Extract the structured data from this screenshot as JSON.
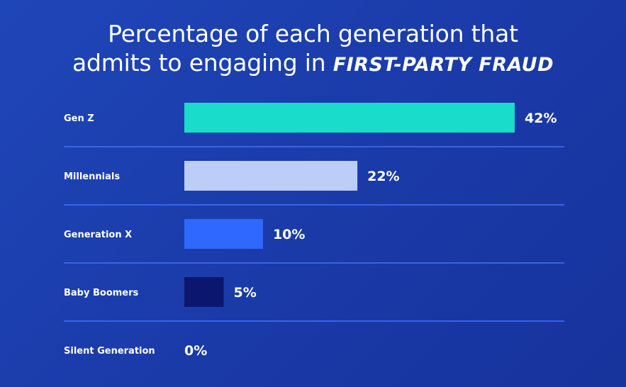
{
  "title": {
    "line1": "Percentage of each generation that",
    "line2_plain": "admits to engaging in",
    "line2_accent": "FIRST-PARTY FRAUD"
  },
  "colors": {
    "background": "#1c3fb0",
    "divider": "#3f72ff",
    "text": "#ffffff"
  },
  "chart_data": {
    "type": "bar",
    "orientation": "horizontal",
    "title": "Percentage of each generation that admits to engaging in FIRST-PARTY FRAUD",
    "xlabel": "",
    "ylabel": "",
    "xlim": [
      0,
      42
    ],
    "grid": false,
    "categories": [
      "Gen Z",
      "Millennials",
      "Generation X",
      "Baby Boomers",
      "Silent Generation"
    ],
    "values": [
      42,
      22,
      10,
      5,
      0
    ],
    "value_labels": [
      "42%",
      "22%",
      "10%",
      "5%",
      "0%"
    ],
    "bar_colors": [
      "#1adccb",
      "#bccdf8",
      "#2f68ff",
      "#0b176f",
      "#0b176f"
    ]
  }
}
